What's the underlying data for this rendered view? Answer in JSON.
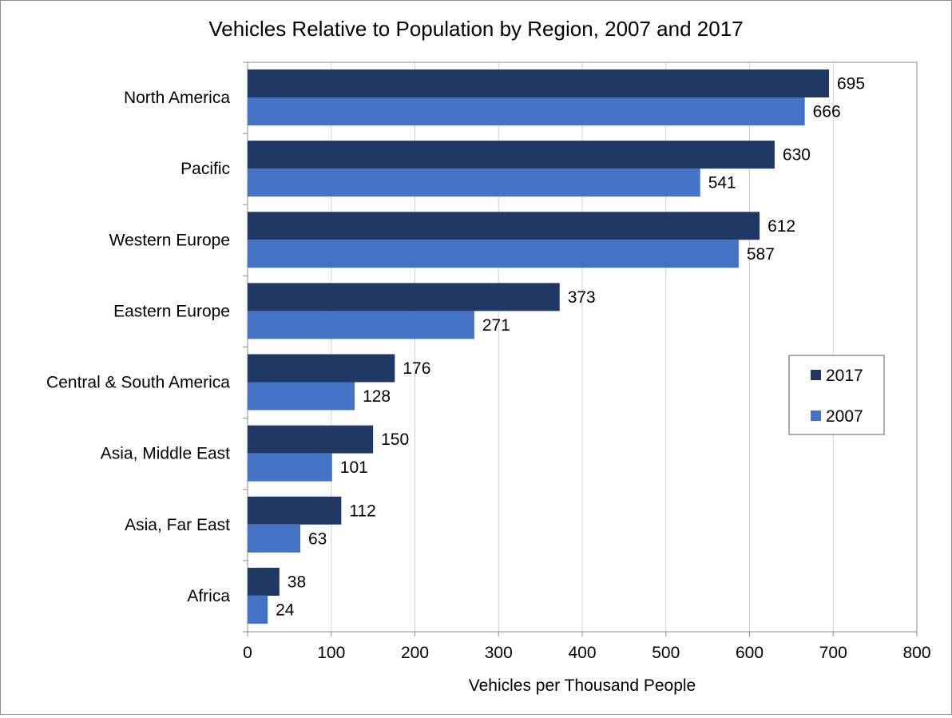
{
  "chart_data": {
    "type": "bar",
    "orientation": "horizontal",
    "title": "Vehicles Relative to Population by Region, 2007 and 2017",
    "xlabel": "Vehicles per Thousand People",
    "ylabel": "",
    "xlim": [
      0,
      800
    ],
    "xticks": [
      "0",
      "100",
      "200",
      "300",
      "400",
      "500",
      "600",
      "700",
      "800"
    ],
    "grid": true,
    "legend_position": "right",
    "categories": [
      "North America",
      "Pacific",
      "Western Europe",
      "Eastern Europe",
      "Central & South America",
      "Asia, Middle East",
      "Asia, Far East",
      "Africa"
    ],
    "series": [
      {
        "name": "2017",
        "color": "#1f3864",
        "values": [
          695,
          630,
          612,
          373,
          176,
          150,
          112,
          38
        ]
      },
      {
        "name": "2007",
        "color": "#4472c4",
        "values": [
          666,
          541,
          587,
          271,
          128,
          101,
          63,
          24
        ]
      }
    ]
  }
}
